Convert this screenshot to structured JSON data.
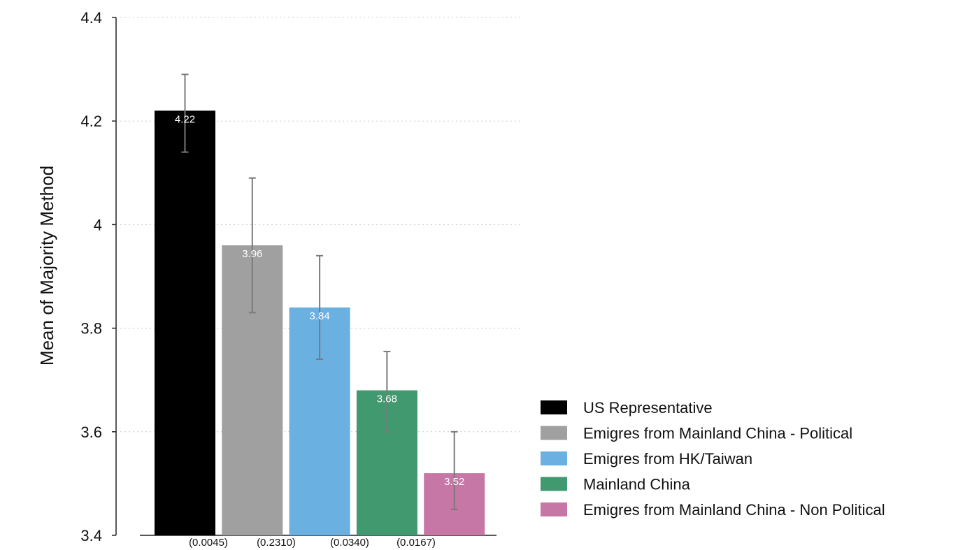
{
  "chart_data": {
    "type": "bar",
    "ylabel": "Mean of Majority Method",
    "ylim": [
      3.4,
      4.4
    ],
    "yticks": [
      3.4,
      3.6,
      3.8,
      4,
      4.2,
      4.4
    ],
    "ytick_labels": [
      "3.4",
      "3.6",
      "3.8",
      "4",
      "4.2",
      "4.4"
    ],
    "grid": true,
    "legend_position": "right-bottom",
    "series": [
      {
        "name": "US Representative",
        "value": 4.22,
        "label": "4.22",
        "ci": [
          4.14,
          4.29
        ],
        "color": "#000000"
      },
      {
        "name": "Emigres from Mainland China - Political",
        "value": 3.96,
        "label": "3.96",
        "ci": [
          3.83,
          4.09
        ],
        "color": "#a0a0a0"
      },
      {
        "name": "Emigres from HK/Taiwan",
        "value": 3.84,
        "label": "3.84",
        "ci": [
          3.74,
          3.94
        ],
        "color": "#6ab0e0"
      },
      {
        "name": "Mainland China",
        "value": 3.68,
        "label": "3.68",
        "ci": [
          3.6,
          3.755
        ],
        "color": "#419970"
      },
      {
        "name": "Emigres from Mainland China - Non Political",
        "value": 3.52,
        "label": "3.52",
        "ci": [
          3.45,
          3.6
        ],
        "color": "#c777a6"
      }
    ],
    "pvalues": [
      "(0.0045)",
      "(0.2310)",
      "(0.0340)",
      "(0.0167)"
    ]
  }
}
